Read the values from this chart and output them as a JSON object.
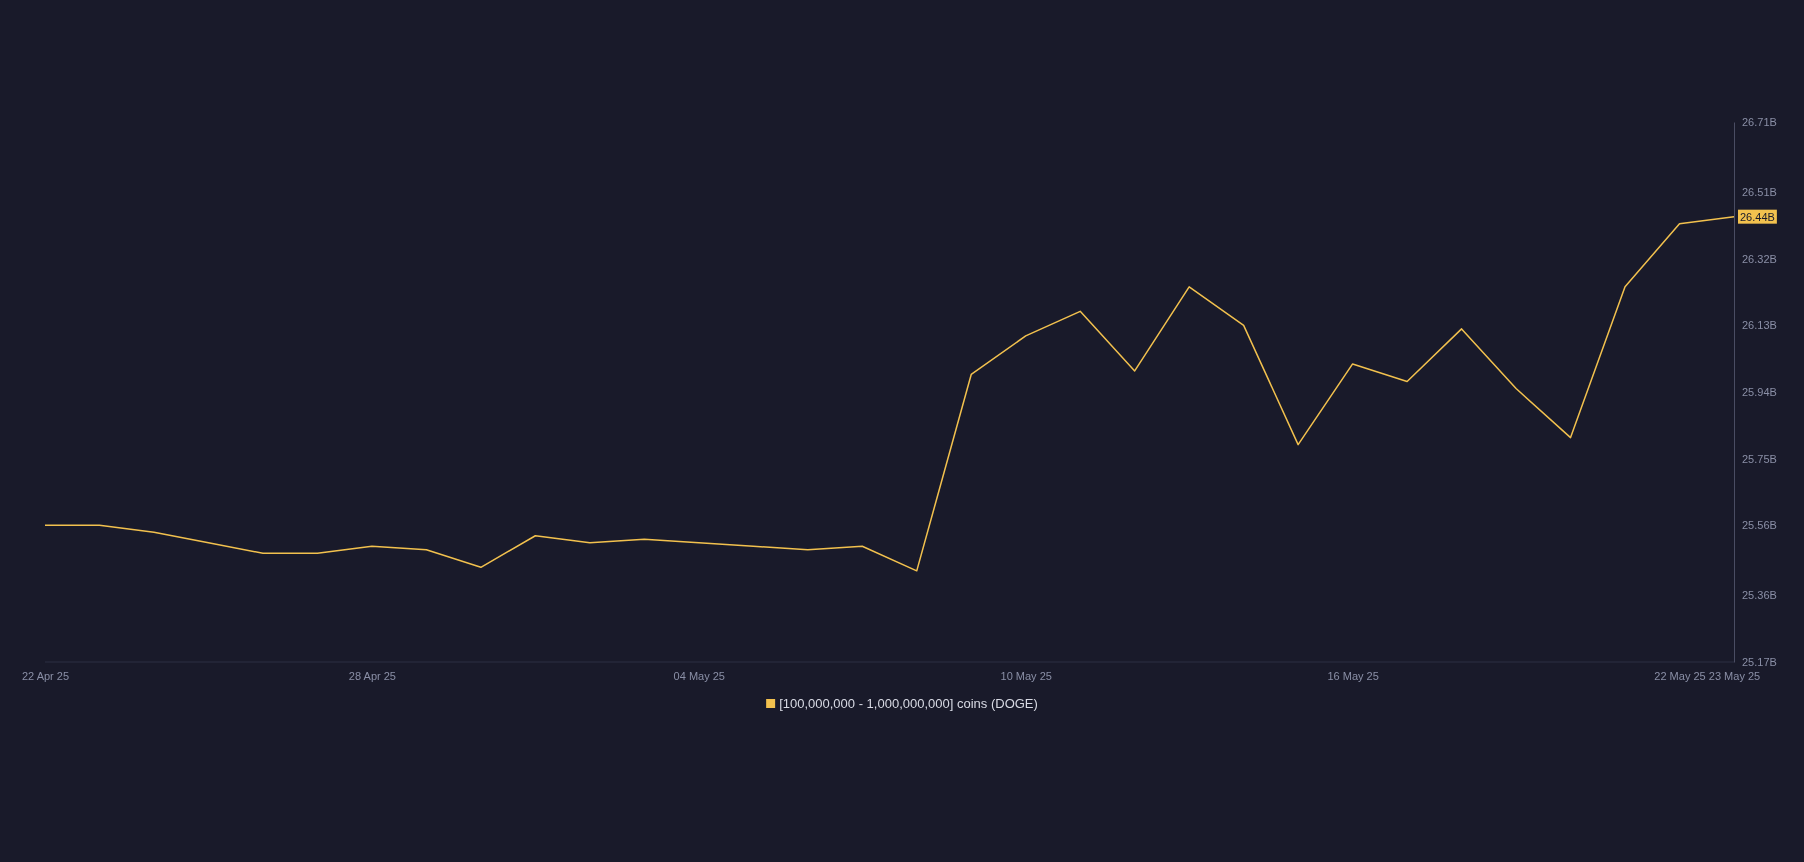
{
  "chart_data": {
    "type": "line",
    "legend": "bottom",
    "marker": "none",
    "line_style": "solid",
    "x": [
      "--04-22",
      "--04-23",
      "--04-24",
      "--04-25",
      "--04-26",
      "--04-27",
      "--04-28",
      "--04-29",
      "--04-30",
      "--05-01",
      "--05-02",
      "--05-03",
      "--05-04",
      "--05-05",
      "--05-06",
      "--05-07",
      "--05-08",
      "--05-09",
      "--05-10",
      "--05-11",
      "--05-12",
      "--05-13",
      "--05-14",
      "--05-15",
      "--05-16",
      "--05-17",
      "--05-18",
      "--05-19",
      "--05-20",
      "--05-21",
      "--05-22",
      "--05-23"
    ],
    "series": [
      {
        "name": "[100,000,000 - 1,000,000,000] coins (DOGE)",
        "color": "#f2c14e",
        "values": [
          25.56,
          25.56,
          25.54,
          25.51,
          25.48,
          25.48,
          25.5,
          25.49,
          25.44,
          25.53,
          25.51,
          25.52,
          25.51,
          25.5,
          25.49,
          25.5,
          25.43,
          25.99,
          26.1,
          26.17,
          26.0,
          26.24,
          26.13,
          25.79,
          26.02,
          25.97,
          26.12,
          25.95,
          25.81,
          26.24,
          26.42,
          26.44
        ]
      }
    ],
    "xlim": [
      "--04-22",
      "--05-23"
    ],
    "xticks": [
      {
        "value": "--04-22",
        "label": "22 Apr 25"
      },
      {
        "value": "--04-28",
        "label": "28 Apr 25"
      },
      {
        "value": "--05-04",
        "label": "04 May 25"
      },
      {
        "value": "--05-10",
        "label": "10 May 25"
      },
      {
        "value": "--05-16",
        "label": "16 May 25"
      },
      {
        "value": "--05-22",
        "label": "22 May 25"
      },
      {
        "value": "--05-23",
        "label": "23 May 25"
      }
    ],
    "ylim": [
      25.17,
      26.71
    ],
    "yticks": [
      {
        "value": 25.17,
        "label": "25.17B"
      },
      {
        "value": 25.36,
        "label": "25.36B"
      },
      {
        "value": 25.56,
        "label": "25.56B"
      },
      {
        "value": 25.75,
        "label": "25.75B"
      },
      {
        "value": 25.94,
        "label": "25.94B"
      },
      {
        "value": 26.13,
        "label": "26.13B"
      },
      {
        "value": 26.32,
        "label": "26.32B"
      },
      {
        "value": 26.51,
        "label": "26.51B"
      },
      {
        "value": 26.71,
        "label": "26.71B"
      }
    ],
    "annotations": [
      {
        "text": "26.44B",
        "x": "--05-23",
        "y": 26.44
      }
    ]
  }
}
